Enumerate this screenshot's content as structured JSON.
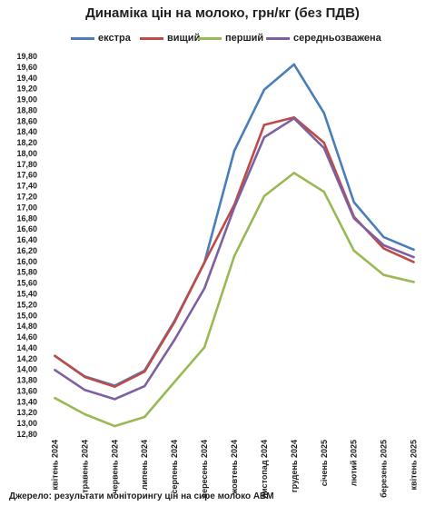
{
  "chart_data": {
    "type": "line",
    "title": "Динаміка цін на молоко, грн/кг (без ПДВ)",
    "categories": [
      "квітень 2024",
      "травень 2024",
      "червень 2024",
      "липень 2024",
      "серпень 2024",
      "вересень 2024",
      "жовтень 2024",
      "листопад 2024",
      "грудень 2024",
      "січень 2025",
      "лютий 2025",
      "березень 2025",
      "квітень 2025"
    ],
    "series": [
      {
        "name": "екстра",
        "color": "#4a7ebb",
        "values": [
          14.25,
          13.87,
          13.7,
          13.98,
          14.9,
          15.98,
          18.05,
          19.18,
          19.65,
          18.75,
          17.1,
          16.45,
          16.22
        ]
      },
      {
        "name": "вищий",
        "color": "#be4b48",
        "values": [
          14.25,
          13.86,
          13.68,
          13.96,
          14.88,
          15.98,
          17.05,
          18.53,
          18.67,
          18.2,
          16.83,
          16.24,
          15.99
        ]
      },
      {
        "name": "перший",
        "color": "#98b954",
        "values": [
          13.47,
          13.17,
          12.95,
          13.12,
          13.77,
          14.41,
          16.1,
          17.21,
          17.64,
          17.29,
          16.2,
          15.75,
          15.62
        ]
      },
      {
        "name": "середньозважена",
        "color": "#7d60a0",
        "values": [
          13.99,
          13.62,
          13.45,
          13.69,
          14.55,
          15.5,
          17.0,
          18.3,
          18.65,
          18.1,
          16.8,
          16.3,
          16.08
        ]
      }
    ],
    "yticks": [
      "12,80",
      "13,00",
      "13,20",
      "13,40",
      "13,60",
      "13,80",
      "14,00",
      "14,20",
      "14,40",
      "14,60",
      "14,80",
      "15,00",
      "15,20",
      "15,40",
      "15,60",
      "15,80",
      "16,00",
      "16,20",
      "16,40",
      "16,60",
      "16,80",
      "17,00",
      "17,20",
      "17,40",
      "17,60",
      "17,80",
      "18,00",
      "18,20",
      "18,40",
      "18,60",
      "18,80",
      "19,00",
      "19,20",
      "19,40",
      "19,60",
      "19,80"
    ],
    "ylim": [
      12.8,
      19.8
    ],
    "grid": false,
    "legend_position": "top"
  },
  "source_note": "Джерело: результати моніторингу цін на сире молоко АВМ"
}
